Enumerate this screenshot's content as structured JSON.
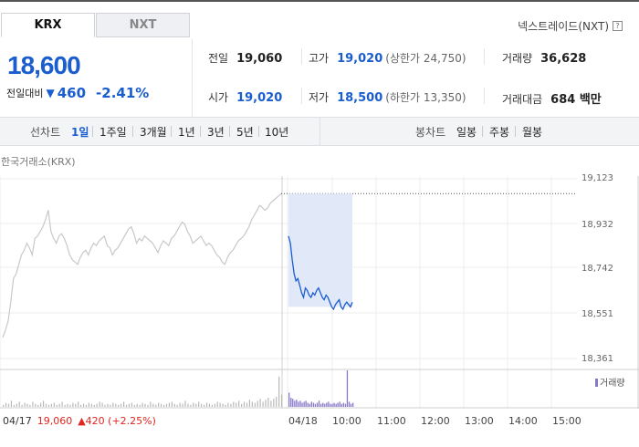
{
  "tabs": {
    "krx": "KRX",
    "nxt": "NXT"
  },
  "nxt_link": "넥스트레이드(NXT)",
  "nxt_help": "?",
  "price": {
    "current": "18,600",
    "change_label": "전일대비",
    "change_arrow": "▼",
    "change_amount": "460",
    "change_pct": "-2.41%"
  },
  "stats": {
    "prev_label": "전일",
    "prev_val": "19,060",
    "high_label": "고가",
    "high_val": "19,020",
    "upper_limit": "(상한가 24,750)",
    "volume_label": "거래량",
    "volume_val": "36,628",
    "open_label": "시가",
    "open_val": "19,020",
    "low_label": "저가",
    "low_val": "18,500",
    "lower_limit": "(하한가 13,350)",
    "amount_label": "거래대금",
    "amount_val": "684 백만"
  },
  "period_bar": {
    "line_chart_label": "선차트",
    "line_options": [
      "1일",
      "1주일",
      "3개월",
      "1년",
      "3년",
      "5년",
      "10년"
    ],
    "selected": "1일",
    "candle_chart_label": "봉차트",
    "candle_options": [
      "일봉",
      "주봉",
      "월봉"
    ]
  },
  "chart_source": "한국거래소(KRX)",
  "chart_data": {
    "type": "line",
    "y_ticks": [
      "19,123",
      "18,932",
      "18,742",
      "18,551",
      "18,361"
    ],
    "ylim": [
      18361,
      19123
    ],
    "x_labels": [
      "04/18",
      "10:00",
      "11:00",
      "12:00",
      "13:00",
      "14:00",
      "15:00"
    ],
    "prev_day": {
      "date": "04/17",
      "close": "19,060",
      "arrow": "▲",
      "change": "420",
      "pct": "(+2.25%)"
    },
    "prev_day_series": [
      18450,
      18480,
      18520,
      18600,
      18700,
      18720,
      18760,
      18800,
      18820,
      18850,
      18830,
      18800,
      18870,
      18880,
      18900,
      18920,
      18950,
      18990,
      18900,
      18870,
      18850,
      18880,
      18890,
      18870,
      18840,
      18800,
      18780,
      18770,
      18760,
      18790,
      18810,
      18820,
      18800,
      18830,
      18850,
      18840,
      18860,
      18870,
      18880,
      18840,
      18830,
      18800,
      18820,
      18830,
      18850,
      18870,
      18890,
      18910,
      18920,
      18890,
      18850,
      18870,
      18860,
      18880,
      18870,
      18860,
      18850,
      18830,
      18810,
      18840,
      18860,
      18850,
      18840,
      18870,
      18880,
      18900,
      18920,
      18940,
      18930,
      18900,
      18880,
      18850,
      18860,
      18870,
      18880,
      18860,
      18840,
      18850,
      18840,
      18820,
      18800,
      18790,
      18770,
      18760,
      18790,
      18810,
      18820,
      18840,
      18860,
      18870,
      18880,
      18900,
      18920,
      18950,
      18970,
      18990,
      19010,
      19000,
      18990,
      19000,
      19020,
      19030,
      19040,
      19050,
      19060
    ],
    "today_series": [
      18880,
      18850,
      18780,
      18720,
      18690,
      18700,
      18670,
      18640,
      18620,
      18660,
      18650,
      18630,
      18620,
      18640,
      18630,
      18650,
      18660,
      18640,
      18620,
      18610,
      18630,
      18620,
      18600,
      18580,
      18570,
      18590,
      18600,
      18610,
      18580,
      18570,
      18590,
      18600,
      18590,
      18580,
      18600
    ],
    "volume_label": "거래량",
    "volume_prev": [
      2,
      4,
      3,
      6,
      2,
      3,
      5,
      2,
      4,
      3,
      2,
      5,
      3,
      2,
      4,
      6,
      3,
      2,
      3,
      4,
      2,
      3,
      5,
      2,
      3,
      2,
      4,
      3,
      5,
      2,
      3,
      2,
      4,
      3,
      2,
      3,
      5,
      4,
      2,
      3,
      2,
      4,
      3,
      2,
      3,
      5,
      2,
      3,
      4,
      2,
      3,
      2,
      4,
      3,
      2,
      5,
      3,
      2,
      4,
      3,
      2,
      3,
      4,
      5,
      3,
      2,
      4,
      3,
      6,
      3,
      2,
      4,
      3,
      5,
      3,
      2,
      4,
      3,
      2,
      3,
      5,
      4,
      3,
      2,
      4,
      3,
      5,
      4,
      6,
      3,
      5,
      4,
      7,
      5,
      4,
      6,
      8,
      5,
      7,
      9,
      6,
      8,
      10,
      30,
      12
    ],
    "volume_today": [
      14,
      9,
      8,
      6,
      7,
      5,
      6,
      4,
      5,
      6,
      4,
      3,
      5,
      4,
      3,
      4,
      6,
      3,
      4,
      3,
      4,
      5,
      3,
      3,
      4,
      3,
      4,
      5,
      3,
      4,
      3,
      36,
      5,
      3,
      4
    ]
  },
  "colors": {
    "accent": "#1a5dcf",
    "up": "#e0261e",
    "prev_line": "#c8c8c8",
    "today_line": "#1a5dcf",
    "volume_bar": "#8878c8"
  }
}
